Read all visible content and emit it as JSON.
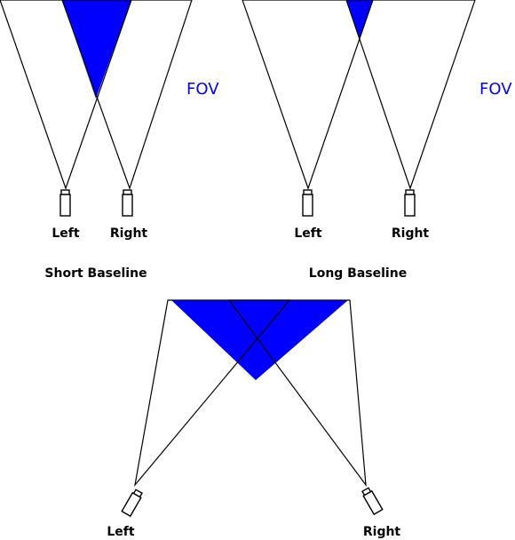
{
  "colors": {
    "overlap_fill": "#0000ff",
    "fov_text": "#0000ff",
    "line": "#000000"
  },
  "labels": {
    "fov_short": "FOV",
    "fov_long": "FOV",
    "left": "Left",
    "right": "Right",
    "short_baseline": "Short Baseline",
    "long_baseline": "Long Baseline"
  }
}
